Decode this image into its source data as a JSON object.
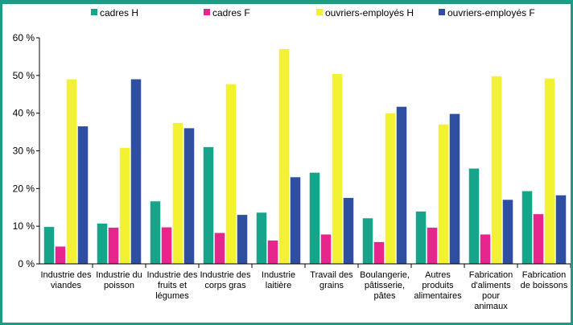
{
  "chart_data": {
    "type": "bar",
    "categories": [
      [
        "Industrie des",
        "viandes"
      ],
      [
        "Industrie du",
        "poisson"
      ],
      [
        "Industrie des",
        "fruits et",
        "légumes"
      ],
      [
        "Industrie des",
        "corps gras"
      ],
      [
        "Industrie",
        "laitière"
      ],
      [
        "Travail des",
        "grains"
      ],
      [
        "Boulangerie,",
        "pâtisserie,",
        "pâtes"
      ],
      [
        "Autres",
        "produits",
        "alimentaires"
      ],
      [
        "Fabrication",
        "d'aliments",
        "pour",
        "animaux"
      ],
      [
        "Fabrication",
        "de boissons"
      ]
    ],
    "series": [
      {
        "name": "cadres H",
        "color": "#16a58a",
        "values": [
          9.8,
          10.7,
          16.6,
          31.0,
          13.6,
          24.2,
          12.1,
          13.9,
          25.3,
          19.3
        ]
      },
      {
        "name": "cadres F",
        "color": "#e6268c",
        "values": [
          4.6,
          9.6,
          9.7,
          8.2,
          6.2,
          7.8,
          5.8,
          9.6,
          7.8,
          13.2
        ]
      },
      {
        "name": "ouvriers-employés H",
        "color": "#f2f233",
        "values": [
          49.0,
          30.8,
          37.4,
          47.7,
          57.0,
          50.4,
          40.0,
          37.0,
          49.8,
          49.2
        ]
      },
      {
        "name": "ouvriers-employés F",
        "color": "#2e4fa1",
        "values": [
          36.5,
          49.0,
          36.0,
          13.0,
          23.0,
          17.5,
          41.7,
          39.8,
          17.0,
          18.2
        ]
      }
    ],
    "yticks": [
      "0 %",
      "10 %",
      "20 %",
      "30 %",
      "40 %",
      "50 %",
      "60 %"
    ],
    "ylim": [
      0,
      60
    ],
    "grid": false,
    "legend": "top"
  }
}
